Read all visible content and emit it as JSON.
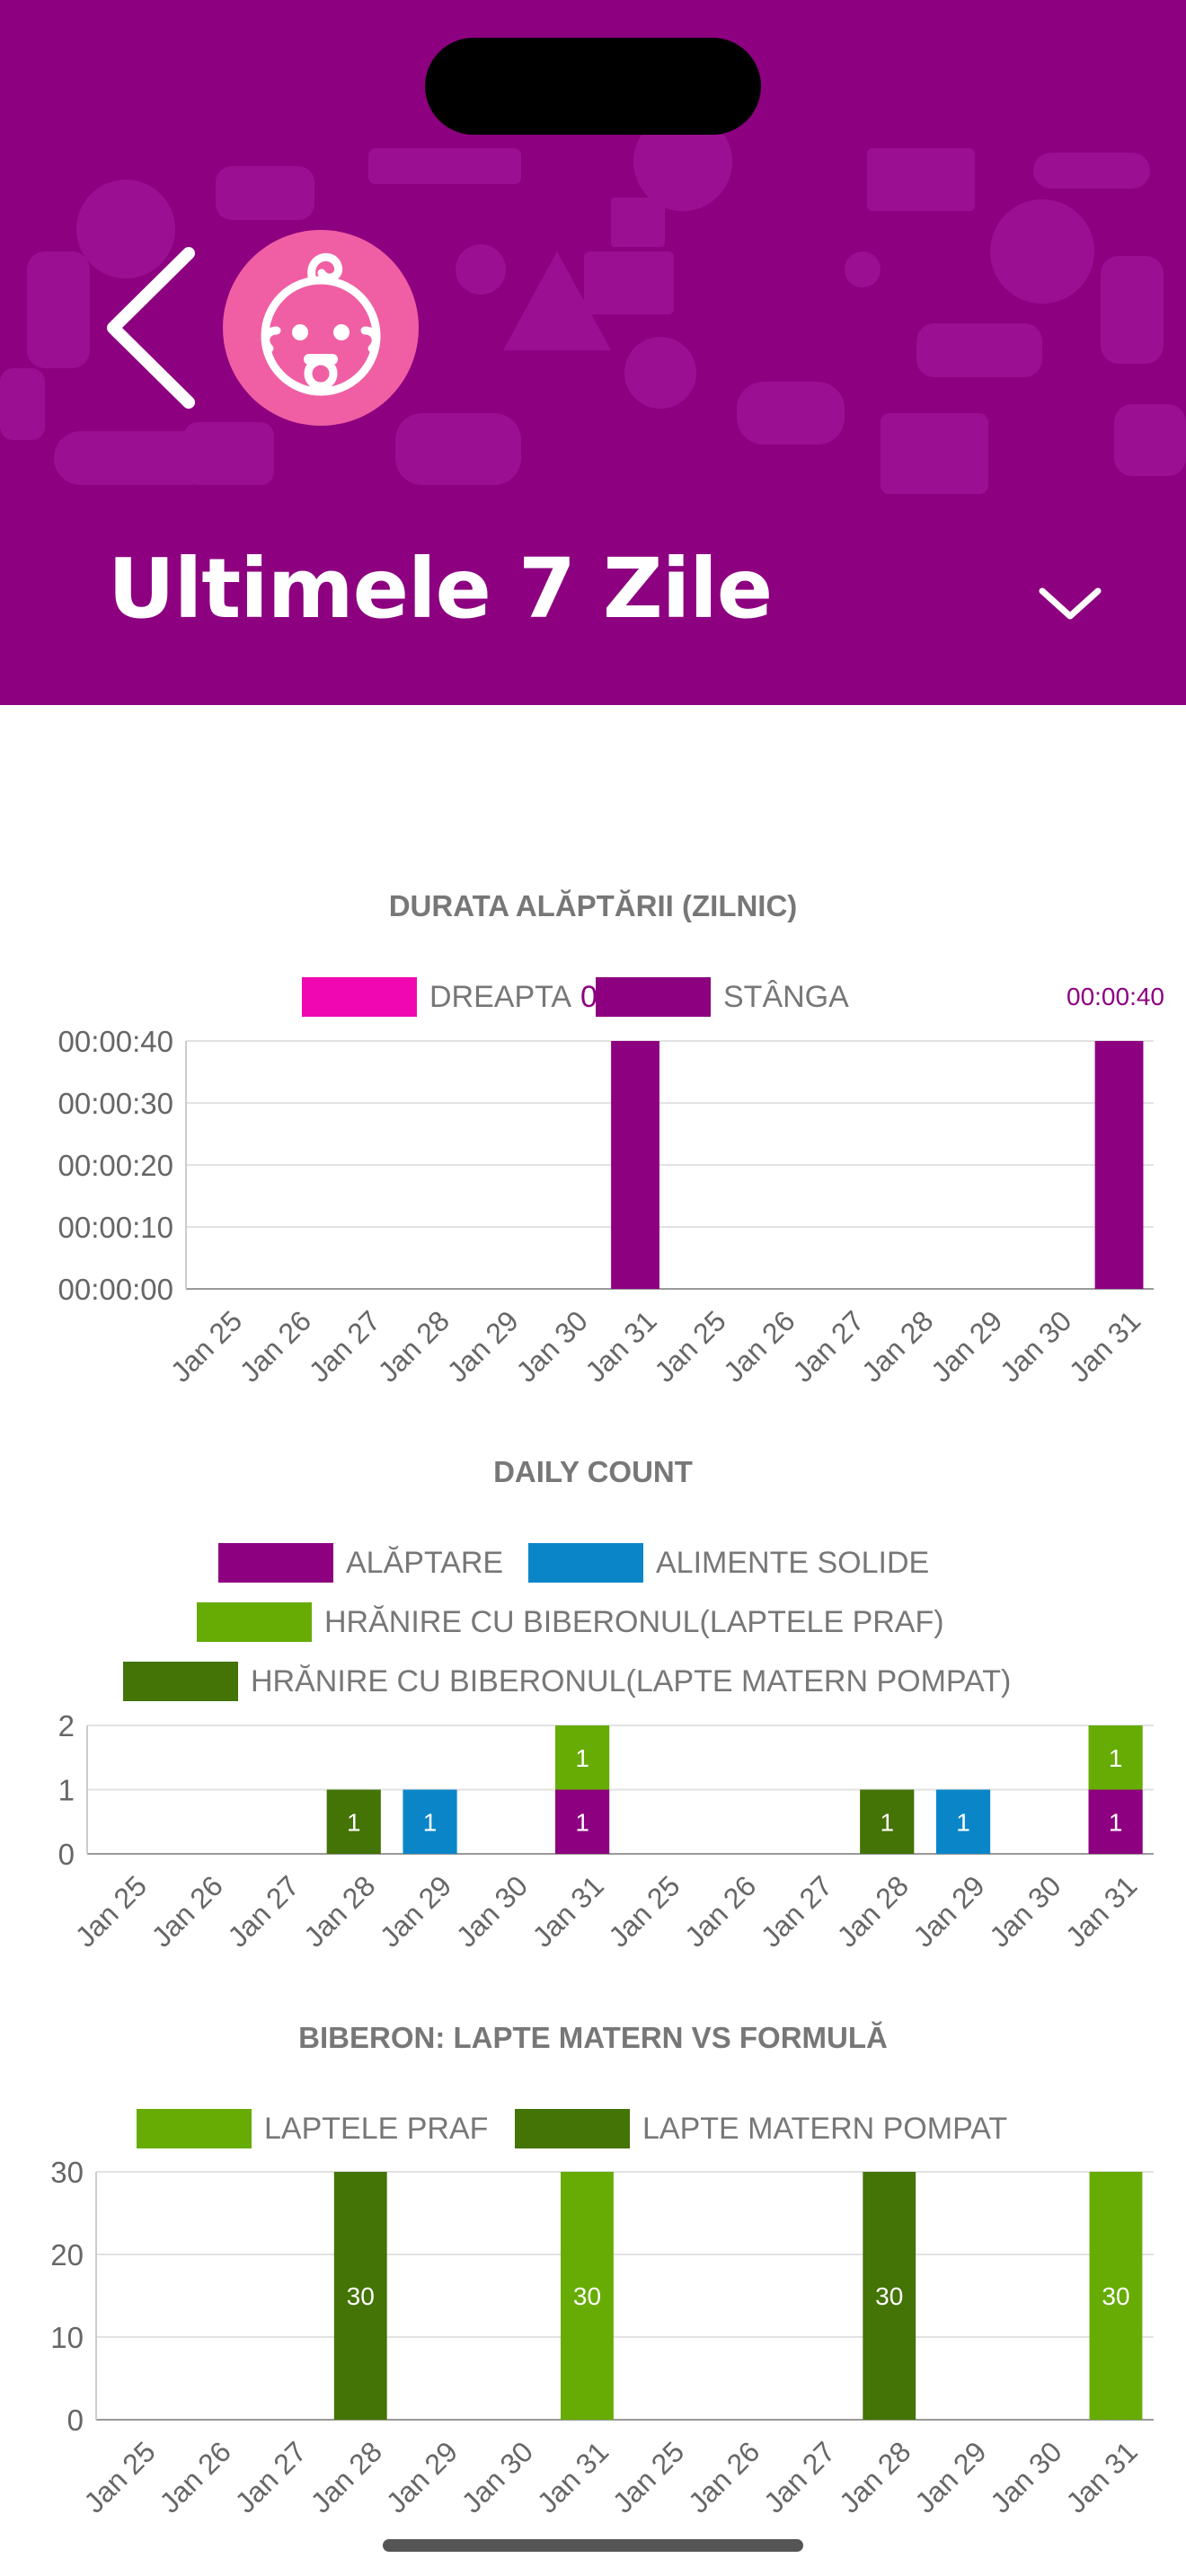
{
  "header": {
    "title": "Ultimele 7 Zile",
    "colors": {
      "background": "#8d0080",
      "avatar": "#f05fa3"
    },
    "icons": {
      "back": "back-chevron-icon",
      "avatar": "baby-face-icon",
      "dropdown": "chevron-down-icon"
    }
  },
  "charts": {
    "duration": {
      "title": "DURATA ALĂPTĂRII (ZILNIC)",
      "legend": [
        {
          "label": "DREAPTA",
          "color": "#f007b2"
        },
        {
          "label": "STÂNGA",
          "color": "#8d0080"
        }
      ],
      "peak_label": "00:00:40",
      "overlap_label": "0"
    },
    "daily": {
      "title": "DAILY COUNT",
      "legend": [
        {
          "label": "ALĂPTARE",
          "color": "#8d0080"
        },
        {
          "label": "ALIMENTE SOLIDE",
          "color": "#0a86c8"
        },
        {
          "label": "HRĂNIRE CU BIBERONUL(LAPTELE PRAF)",
          "color": "#66ac04"
        },
        {
          "label": "HRĂNIRE CU BIBERONUL(LAPTE MATERN POMPAT)",
          "color": "#447306"
        }
      ]
    },
    "bottle": {
      "title": "BIBERON: LAPTE MATERN VS FORMULĂ",
      "legend": [
        {
          "label": "LAPTELE PRAF",
          "color": "#66ac04"
        },
        {
          "label": "LAPTE MATERN POMPAT",
          "color": "#447306"
        }
      ]
    }
  },
  "chart_data": [
    {
      "type": "bar",
      "title": "DURATA ALĂPTĂRII (ZILNIC)",
      "categories": [
        "Jan 25",
        "Jan 26",
        "Jan 27",
        "Jan 28",
        "Jan 29",
        "Jan 30",
        "Jan 31",
        "Jan 25",
        "Jan 26",
        "Jan 27",
        "Jan 28",
        "Jan 29",
        "Jan 30",
        "Jan 31"
      ],
      "series": [
        {
          "name": "DREAPTA",
          "color": "#f007b2",
          "values": [
            0,
            0,
            0,
            0,
            0,
            0,
            0,
            0,
            0,
            0,
            0,
            0,
            0,
            0
          ]
        },
        {
          "name": "STÂNGA",
          "color": "#8d0080",
          "values": [
            0,
            0,
            0,
            0,
            0,
            0,
            40,
            0,
            0,
            0,
            0,
            0,
            0,
            40
          ]
        }
      ],
      "value_unit": "seconds",
      "yticks": [
        "00:00:00",
        "00:00:10",
        "00:00:20",
        "00:00:30",
        "00:00:40"
      ],
      "ylim": [
        0,
        40
      ],
      "grid": true,
      "legend": "top"
    },
    {
      "type": "bar",
      "stacked": true,
      "title": "DAILY COUNT",
      "categories": [
        "Jan 25",
        "Jan 26",
        "Jan 27",
        "Jan 28",
        "Jan 29",
        "Jan 30",
        "Jan 31",
        "Jan 25",
        "Jan 26",
        "Jan 27",
        "Jan 28",
        "Jan 29",
        "Jan 30",
        "Jan 31"
      ],
      "series": [
        {
          "name": "ALĂPTARE",
          "color": "#8d0080",
          "values": [
            0,
            0,
            0,
            0,
            0,
            0,
            1,
            0,
            0,
            0,
            0,
            0,
            0,
            1
          ]
        },
        {
          "name": "ALIMENTE SOLIDE",
          "color": "#0a86c8",
          "values": [
            0,
            0,
            0,
            0,
            1,
            0,
            0,
            0,
            0,
            0,
            0,
            1,
            0,
            0
          ]
        },
        {
          "name": "HRĂNIRE CU BIBERONUL(LAPTELE PRAF)",
          "color": "#66ac04",
          "values": [
            0,
            0,
            0,
            0,
            0,
            0,
            1,
            0,
            0,
            0,
            0,
            0,
            0,
            1
          ]
        },
        {
          "name": "HRĂNIRE CU BIBERONUL(LAPTE MATERN POMPAT)",
          "color": "#447306",
          "values": [
            0,
            0,
            0,
            1,
            0,
            0,
            0,
            0,
            0,
            0,
            1,
            0,
            0,
            0
          ]
        }
      ],
      "yticks": [
        "0",
        "1",
        "2"
      ],
      "ylim": [
        0,
        2
      ],
      "grid": true,
      "legend": "top"
    },
    {
      "type": "bar",
      "title": "BIBERON: LAPTE MATERN VS FORMULĂ",
      "categories": [
        "Jan 25",
        "Jan 26",
        "Jan 27",
        "Jan 28",
        "Jan 29",
        "Jan 30",
        "Jan 31",
        "Jan 25",
        "Jan 26",
        "Jan 27",
        "Jan 28",
        "Jan 29",
        "Jan 30",
        "Jan 31"
      ],
      "series": [
        {
          "name": "LAPTELE PRAF",
          "color": "#66ac04",
          "values": [
            0,
            0,
            0,
            0,
            0,
            0,
            30,
            0,
            0,
            0,
            0,
            0,
            0,
            30
          ]
        },
        {
          "name": "LAPTE MATERN POMPAT",
          "color": "#447306",
          "values": [
            0,
            0,
            0,
            30,
            0,
            0,
            0,
            0,
            0,
            0,
            30,
            0,
            0,
            0
          ]
        }
      ],
      "yticks": [
        "0",
        "10",
        "20",
        "30"
      ],
      "ylim": [
        0,
        30
      ],
      "grid": true,
      "legend": "top"
    }
  ]
}
